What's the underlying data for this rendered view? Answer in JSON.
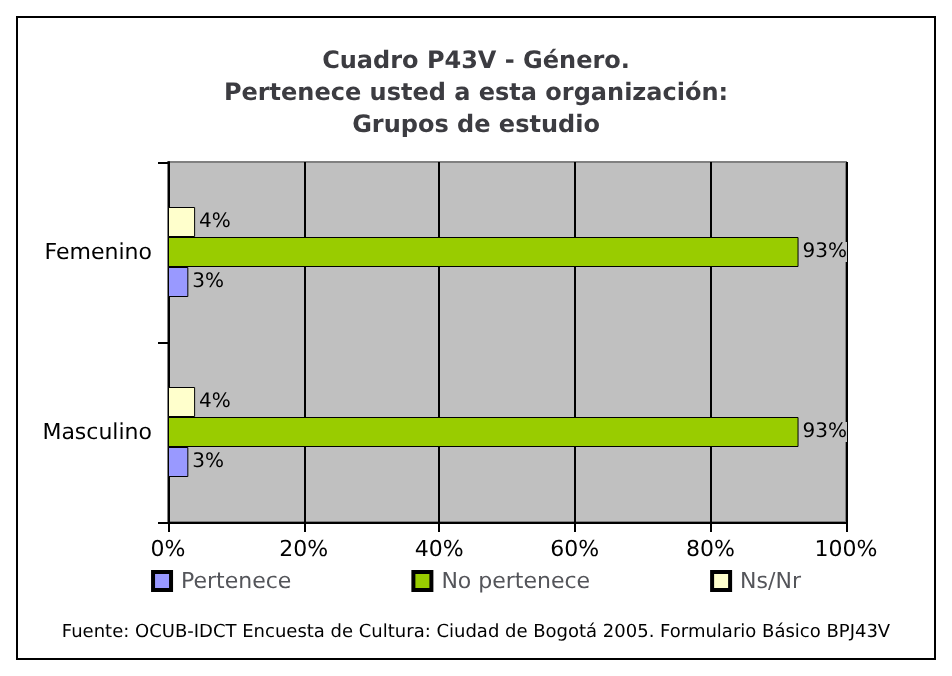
{
  "chart_data": {
    "type": "bar",
    "orientation": "horizontal",
    "title": "Cuadro P43V - Género.\nPertenece usted a esta organización:\nGrupos de estudio",
    "categories": [
      "Femenino",
      "Masculino"
    ],
    "series": [
      {
        "name": "Pertenece",
        "color": "#9999ff",
        "values": [
          3,
          3
        ],
        "value_labels": [
          "3%",
          "3%"
        ]
      },
      {
        "name": "No pertenece",
        "color": "#99cc00",
        "values": [
          93,
          93
        ],
        "value_labels": [
          "93%",
          "93%"
        ]
      },
      {
        "name": "Ns/Nr",
        "color": "#ffffcc",
        "values": [
          4,
          4
        ],
        "value_labels": [
          "4%",
          "4%"
        ]
      }
    ],
    "xlim": [
      0,
      100
    ],
    "xticks": [
      {
        "value": 0,
        "label": "0%"
      },
      {
        "value": 20,
        "label": "20%"
      },
      {
        "value": 40,
        "label": "40%"
      },
      {
        "value": 60,
        "label": "60%"
      },
      {
        "value": 80,
        "label": "80%"
      },
      {
        "value": 100,
        "label": "100%"
      }
    ],
    "grid": "x",
    "legend": "bottom",
    "annotations": [
      "Fuente: OCUB-IDCT Encuesta de Cultura: Ciudad de Bogotá 2005. Formulario Básico BPJ43V"
    ]
  }
}
